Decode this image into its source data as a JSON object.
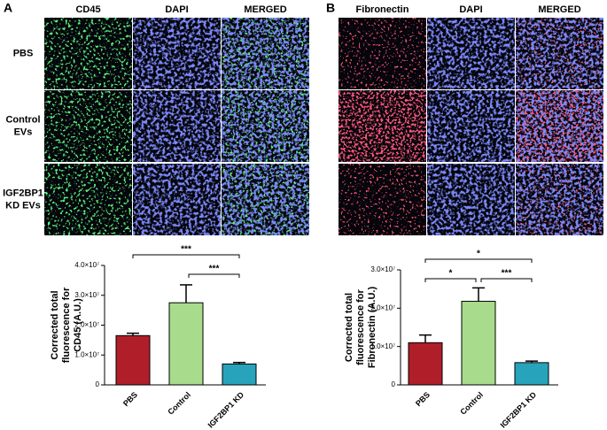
{
  "panels": [
    {
      "label": "A",
      "columns": [
        "CD45",
        "DAPI",
        "MERGED"
      ],
      "column_colors": [
        "#2db84a",
        "#3a3fb8",
        "#000000"
      ],
      "rows": [
        [
          "PBS"
        ],
        [
          "Control",
          "EVs"
        ],
        [
          "IGF2BP1",
          "KD EVs"
        ]
      ]
    },
    {
      "label": "B",
      "columns": [
        "Fibronectin",
        "DAPI",
        "MERGED"
      ],
      "column_colors": [
        "#e8141c",
        "#3a3fb8",
        "#000000"
      ]
    }
  ],
  "chart_data": [
    {
      "type": "bar",
      "ylabel": [
        "Corrected total",
        "fluorescence for",
        "CD45 (A.U.)"
      ],
      "categories": [
        "PBS",
        "Control",
        "IGF2BP1 KD"
      ],
      "values": [
        16500000,
        27500000,
        7000000
      ],
      "errors": [
        800000,
        6000000,
        500000
      ],
      "colors": [
        "#b01e2a",
        "#a8dc8c",
        "#27a4bb"
      ],
      "ylim": [
        0,
        40000000
      ],
      "yticks": [
        0,
        {
          "value": 10000000,
          "label": "1.0×10⁷"
        },
        {
          "value": 20000000,
          "label": "2.0×10⁷"
        },
        {
          "value": 30000000,
          "label": "3.0×10⁷"
        },
        {
          "value": 40000000,
          "label": "4.0×10⁷"
        }
      ],
      "significance": [
        {
          "pair": [
            "PBS",
            "IGF2BP1 KD"
          ],
          "label": "***"
        },
        {
          "pair": [
            "Control",
            "IGF2BP1 KD"
          ],
          "label": "***"
        }
      ]
    },
    {
      "type": "bar",
      "ylabel": [
        "Corrected total",
        "fluorescence for",
        "Fibronectin (A.U.)"
      ],
      "categories": [
        "PBS",
        "Control",
        "IGF2BP1 KD"
      ],
      "values": [
        11000000,
        21800000,
        5800000
      ],
      "errors": [
        2000000,
        3500000,
        400000
      ],
      "colors": [
        "#b01e2a",
        "#a8dc8c",
        "#27a4bb"
      ],
      "ylim": [
        0,
        30000000
      ],
      "yticks": [
        0,
        {
          "value": 10000000,
          "label": "1.0×10⁷"
        },
        {
          "value": 20000000,
          "label": "2.0×10⁷"
        },
        {
          "value": 30000000,
          "label": "3.0×10⁷"
        }
      ],
      "significance": [
        {
          "pair": [
            "PBS",
            "IGF2BP1 KD"
          ],
          "label": "*"
        },
        {
          "pair": [
            "PBS",
            "Control"
          ],
          "label": "*"
        },
        {
          "pair": [
            "Control",
            "IGF2BP1 KD"
          ],
          "label": "***"
        }
      ]
    }
  ]
}
